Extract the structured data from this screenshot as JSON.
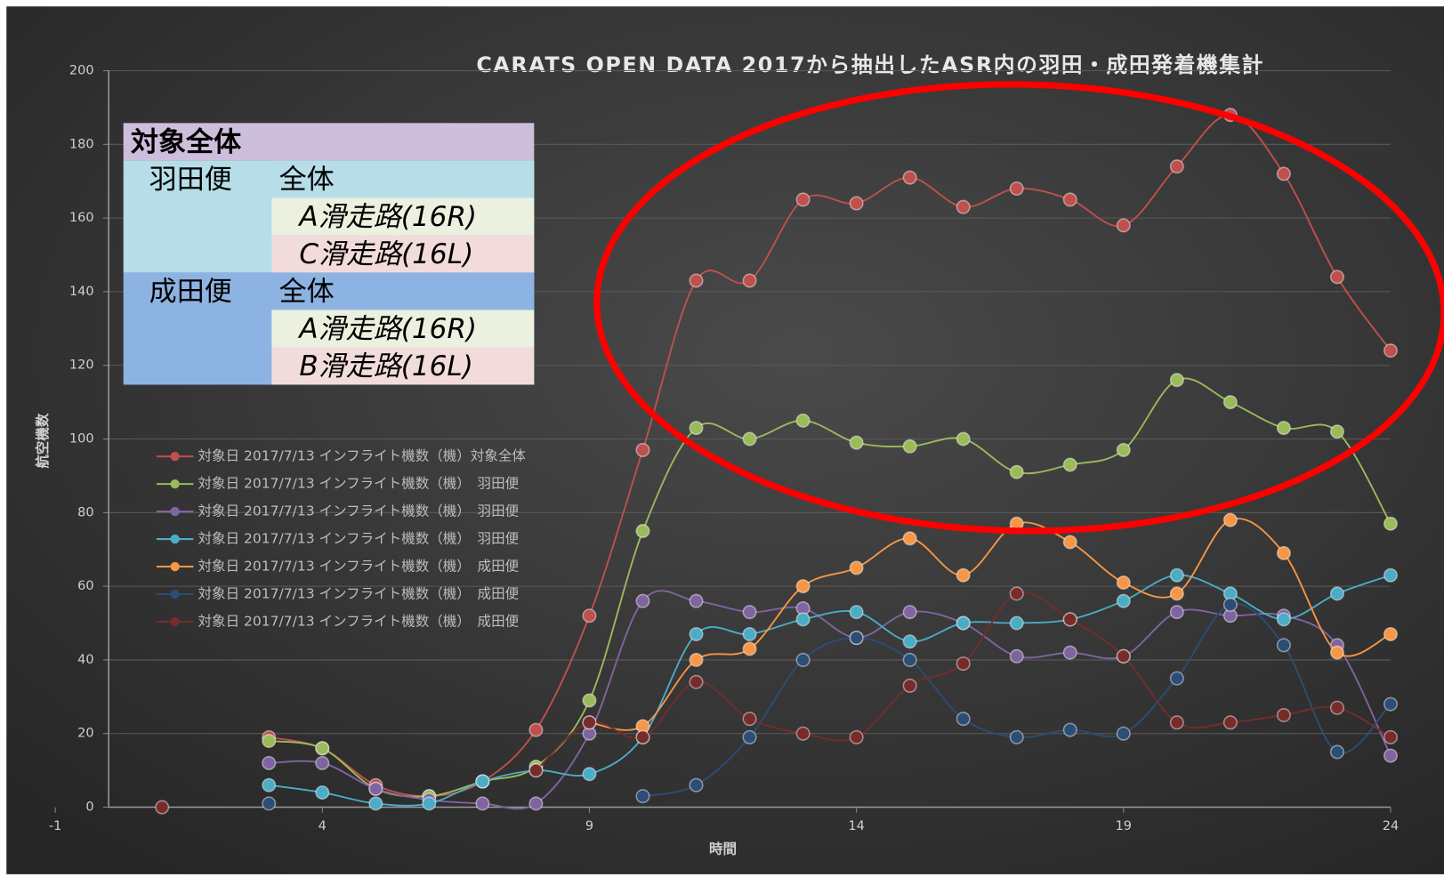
{
  "chart_data": {
    "type": "line",
    "title": "CARATS OPEN DATA 2017から抽出したASR内の羽田・成田発着機集計",
    "x_label": "時間",
    "y_label": "航空機数",
    "x": [
      1,
      2,
      3,
      4,
      5,
      6,
      7,
      8,
      9,
      10,
      11,
      12,
      13,
      14,
      15,
      16,
      17,
      18,
      19,
      20,
      21,
      22,
      23,
      24
    ],
    "series": [
      {
        "name": "対象日 2017/7/13 インフライト機数（機）対象全体",
        "color": "#c0504d",
        "values": [
          null,
          null,
          19,
          16,
          6,
          3,
          7,
          21,
          52,
          97,
          143,
          143,
          165,
          164,
          171,
          163,
          168,
          165,
          158,
          174,
          188,
          172,
          144,
          124
        ]
      },
      {
        "name": "対象日 2017/7/13 インフライト機数（機）　羽田便",
        "color": "#9bbb59",
        "values": [
          null,
          null,
          18,
          16,
          5,
          3,
          7,
          11,
          29,
          75,
          103,
          100,
          105,
          99,
          98,
          100,
          91,
          93,
          97,
          116,
          110,
          103,
          102,
          77
        ]
      },
      {
        "name": "対象日 2017/7/13 インフライト機数（機）　羽田便",
        "color": "#8064a2",
        "values": [
          null,
          null,
          12,
          12,
          5,
          2,
          1,
          1,
          20,
          56,
          56,
          53,
          54,
          46,
          53,
          50,
          41,
          42,
          41,
          53,
          52,
          52,
          44,
          14
        ]
      },
      {
        "name": "対象日 2017/7/13 インフライト機数（機）　羽田便",
        "color": "#4bacc6",
        "values": [
          null,
          null,
          6,
          4,
          1,
          1,
          7,
          10,
          9,
          19,
          47,
          47,
          51,
          53,
          45,
          50,
          50,
          51,
          56,
          63,
          58,
          51,
          58,
          63
        ]
      },
      {
        "name": "対象日 2017/7/13 インフライト機数（機）　成田便",
        "color": "#f79646",
        "values": [
          null,
          null,
          null,
          null,
          null,
          null,
          null,
          null,
          23,
          22,
          40,
          43,
          60,
          65,
          73,
          63,
          77,
          72,
          61,
          58,
          78,
          69,
          42,
          47
        ]
      },
      {
        "name": "対象日 2017/7/13 インフライト機数（機）　成田便",
        "color": "#2c4d75",
        "values": [
          null,
          null,
          1,
          null,
          null,
          null,
          null,
          null,
          null,
          3,
          6,
          19,
          40,
          46,
          40,
          24,
          19,
          21,
          20,
          35,
          55,
          44,
          15,
          28
        ]
      },
      {
        "name": "対象日 2017/7/13 インフライト機数（機）　成田便",
        "color": "#772c2a",
        "values": [
          0,
          null,
          null,
          null,
          null,
          null,
          null,
          10,
          23,
          19,
          34,
          24,
          20,
          19,
          33,
          39,
          58,
          51,
          41,
          23,
          23,
          25,
          27,
          19
        ]
      }
    ],
    "xlim": [
      -1,
      24
    ],
    "xticks": [
      -1,
      4,
      9,
      14,
      19,
      24
    ],
    "ylim": [
      0,
      200
    ],
    "yticks": [
      0,
      20,
      40,
      60,
      80,
      100,
      120,
      140,
      160,
      180,
      200
    ],
    "grid": true,
    "legend": "left"
  },
  "legend_table": {
    "title": "対象全体",
    "groups": [
      {
        "name": "羽田便",
        "items": [
          "全体",
          "A滑走路(16R)",
          "C滑走路(16L)"
        ]
      },
      {
        "name": "成田便",
        "items": [
          "全体",
          "A滑走路(16R)",
          "B滑走路(16L)"
        ]
      }
    ]
  }
}
